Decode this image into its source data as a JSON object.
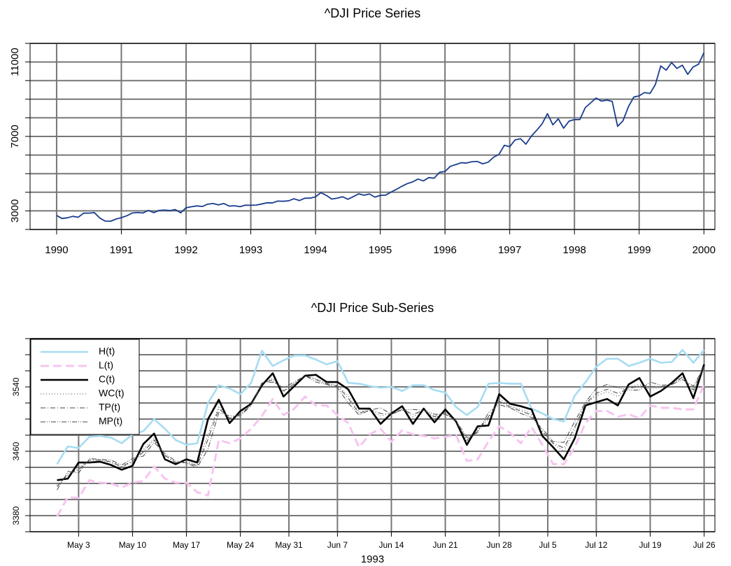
{
  "chart_data": [
    {
      "type": "line",
      "title": "^DJI Price Series",
      "x": [
        1990,
        1990.083,
        1990.167,
        1990.25,
        1990.333,
        1990.417,
        1990.5,
        1990.583,
        1990.667,
        1990.75,
        1990.833,
        1990.917,
        1991,
        1991.083,
        1991.167,
        1991.25,
        1991.333,
        1991.417,
        1991.5,
        1991.583,
        1991.667,
        1991.75,
        1991.833,
        1991.917,
        1992,
        1992.083,
        1992.167,
        1992.25,
        1992.333,
        1992.417,
        1992.5,
        1992.583,
        1992.667,
        1992.75,
        1992.833,
        1992.917,
        1993,
        1993.083,
        1993.167,
        1993.25,
        1993.333,
        1993.417,
        1993.5,
        1993.583,
        1993.667,
        1993.75,
        1993.833,
        1993.917,
        1994,
        1994.083,
        1994.167,
        1994.25,
        1994.333,
        1994.417,
        1994.5,
        1994.583,
        1994.667,
        1994.75,
        1994.833,
        1994.917,
        1995,
        1995.083,
        1995.167,
        1995.25,
        1995.333,
        1995.417,
        1995.5,
        1995.583,
        1995.667,
        1995.75,
        1995.833,
        1995.917,
        1996,
        1996.083,
        1996.167,
        1996.25,
        1996.333,
        1996.417,
        1996.5,
        1996.583,
        1996.667,
        1996.75,
        1996.833,
        1996.917,
        1997,
        1997.083,
        1997.167,
        1997.25,
        1997.333,
        1997.417,
        1997.5,
        1997.583,
        1997.667,
        1997.75,
        1997.833,
        1997.917,
        1998,
        1998.083,
        1998.167,
        1998.25,
        1998.333,
        1998.417,
        1998.5,
        1998.583,
        1998.667,
        1998.75,
        1998.833,
        1998.917,
        1999,
        1999.083,
        1999.167,
        1999.25,
        1999.333,
        1999.417,
        1999.5,
        1999.583,
        1999.667,
        1999.75,
        1999.833,
        1999.917,
        2000
      ],
      "series": [
        {
          "color": "#1a3d8f",
          "linestyle": "solid",
          "values": [
            2753,
            2590,
            2627,
            2707,
            2656,
            2876,
            2880,
            2905,
            2614,
            2452,
            2442,
            2559,
            2633,
            2736,
            2882,
            2913,
            2887,
            3027,
            2906,
            3024,
            3043,
            3017,
            3069,
            2895,
            3168,
            3223,
            3267,
            3235,
            3359,
            3396,
            3319,
            3394,
            3257,
            3272,
            3226,
            3305,
            3301,
            3310,
            3370,
            3435,
            3427,
            3527,
            3516,
            3540,
            3651,
            3555,
            3681,
            3684,
            3754,
            3978,
            3832,
            3636,
            3682,
            3758,
            3625,
            3765,
            3913,
            3843,
            3908,
            3739,
            3834,
            3844,
            4011,
            4158,
            4321,
            4465,
            4556,
            4709,
            4611,
            4789,
            4756,
            5075,
            5117,
            5395,
            5486,
            5588,
            5569,
            5643,
            5655,
            5529,
            5616,
            5882,
            6029,
            6522,
            6448,
            6813,
            6878,
            6584,
            7009,
            7331,
            7673,
            8223,
            7622,
            7945,
            7442,
            7823,
            7908,
            7907,
            8546,
            8800,
            9063,
            8900,
            8952,
            8883,
            7539,
            7843,
            8592,
            9117,
            9181,
            9359,
            9307,
            9786,
            10789,
            10560,
            10971,
            10655,
            10829,
            10337,
            10729,
            10878,
            11497
          ]
        }
      ],
      "xlim": [
        1989.59,
        2000.17
      ],
      "xticks": [
        1990,
        1991,
        1992,
        1993,
        1994,
        1995,
        1996,
        1997,
        1998,
        1999,
        2000
      ],
      "ylim": [
        2000,
        12000
      ],
      "yticks": [
        3000,
        7000,
        11000
      ],
      "ygrid": [
        2000,
        3000,
        4000,
        5000,
        6000,
        7000,
        8000,
        9000,
        10000,
        11000,
        12000
      ],
      "grid": true
    },
    {
      "type": "line",
      "title": "^DJI Price Sub-Series",
      "xlabel": "1993",
      "legend": "top-left",
      "series": [
        {
          "name": "H(t)",
          "color": "#a6dcf2",
          "linestyle": "solid",
          "values": [
            3444,
            3466,
            3464,
            3478,
            3479,
            3477,
            3470,
            3481,
            3485,
            3500,
            3488,
            3474,
            3468,
            3470,
            3520,
            3542,
            3538,
            3531,
            3545,
            3585,
            3566,
            3573,
            3579,
            3579,
            3574,
            3568,
            3572,
            3545,
            3544,
            3541,
            3539,
            3540,
            3535,
            3542,
            3542,
            3536,
            3533,
            3515,
            3505,
            3515,
            3544,
            3545,
            3544,
            3544,
            3513,
            3507,
            3500,
            3497,
            3529,
            3546,
            3565,
            3575,
            3575,
            3566,
            3570,
            3575,
            3570,
            3571,
            3586,
            3570,
            3586
          ]
        },
        {
          "name": "L(t)",
          "color": "#f7c4f0",
          "linestyle": "dashed",
          "values": [
            3379,
            3403,
            3402,
            3424,
            3421,
            3420,
            3415,
            3421,
            3423,
            3441,
            3426,
            3421,
            3421,
            3409,
            3405,
            3474,
            3470,
            3476,
            3488,
            3504,
            3525,
            3505,
            3513,
            3528,
            3517,
            3517,
            3505,
            3495,
            3465,
            3481,
            3488,
            3472,
            3486,
            3481,
            3479,
            3476,
            3478,
            3480,
            3448,
            3450,
            3472,
            3491,
            3483,
            3470,
            3490,
            3468,
            3444,
            3444,
            3465,
            3495,
            3510,
            3510,
            3503,
            3506,
            3501,
            3517,
            3514,
            3514,
            3512,
            3512,
            3543
          ]
        },
        {
          "name": "C(t)",
          "color": "#000000",
          "linestyle": "solid",
          "values": [
            3424,
            3426,
            3446,
            3446,
            3447,
            3443,
            3437,
            3442,
            3469,
            3482,
            3450,
            3444,
            3450,
            3446,
            3500,
            3524,
            3495,
            3510,
            3519,
            3542,
            3557,
            3528,
            3541,
            3554,
            3555,
            3546,
            3546,
            3537,
            3513,
            3513,
            3494,
            3507,
            3516,
            3494,
            3513,
            3496,
            3512,
            3497,
            3468,
            3491,
            3492,
            3531,
            3519,
            3516,
            3512,
            3479,
            3465,
            3450,
            3476,
            3517,
            3521,
            3525,
            3517,
            3543,
            3551,
            3528,
            3535,
            3545,
            3557,
            3526,
            3568
          ]
        },
        {
          "name": "WC(t)",
          "color": "#444444",
          "linestyle": "dotted",
          "values": [
            3418,
            3430,
            3440,
            3449,
            3449,
            3446,
            3440,
            3447,
            3462,
            3476,
            3454,
            3446,
            3447,
            3443,
            3481,
            3516,
            3500,
            3507,
            3518,
            3543,
            3551,
            3534,
            3544,
            3554,
            3550,
            3544,
            3542,
            3529,
            3509,
            3512,
            3504,
            3507,
            3513,
            3503,
            3512,
            3501,
            3509,
            3497,
            3472,
            3487,
            3500,
            3525,
            3516,
            3512,
            3507,
            3483,
            3469,
            3460,
            3487,
            3519,
            3529,
            3534,
            3528,
            3540,
            3543,
            3537,
            3539,
            3544,
            3553,
            3534,
            3566
          ]
        },
        {
          "name": "TP(t)",
          "color": "#444444",
          "linestyle": "dotdash",
          "values": [
            3416,
            3432,
            3437,
            3449,
            3449,
            3447,
            3441,
            3448,
            3459,
            3474,
            3455,
            3446,
            3446,
            3442,
            3475,
            3513,
            3501,
            3506,
            3517,
            3544,
            3549,
            3535,
            3544,
            3554,
            3549,
            3544,
            3541,
            3526,
            3507,
            3512,
            3507,
            3506,
            3512,
            3506,
            3511,
            3503,
            3508,
            3497,
            3474,
            3485,
            3503,
            3522,
            3515,
            3510,
            3505,
            3485,
            3470,
            3464,
            3490,
            3519,
            3532,
            3537,
            3532,
            3538,
            3541,
            3540,
            3540,
            3543,
            3552,
            3536,
            3566
          ]
        },
        {
          "name": "MP(t)",
          "color": "#444444",
          "linestyle": "twodash",
          "values": [
            3412,
            3435,
            3433,
            3451,
            3450,
            3449,
            3443,
            3451,
            3454,
            3471,
            3457,
            3448,
            3445,
            3440,
            3463,
            3508,
            3504,
            3504,
            3517,
            3545,
            3546,
            3539,
            3546,
            3554,
            3546,
            3543,
            3539,
            3520,
            3505,
            3511,
            3514,
            3506,
            3511,
            3512,
            3511,
            3506,
            3506,
            3498,
            3477,
            3483,
            3508,
            3518,
            3514,
            3507,
            3502,
            3488,
            3472,
            3471,
            3497,
            3521,
            3538,
            3543,
            3539,
            3536,
            3536,
            3546,
            3542,
            3543,
            3549,
            3541,
            3565
          ]
        }
      ],
      "xlim": [
        -2.5,
        61
      ],
      "xticks": [
        {
          "value": 2,
          "label": "May 3"
        },
        {
          "value": 7,
          "label": "May 10"
        },
        {
          "value": 12,
          "label": "May 17"
        },
        {
          "value": 17,
          "label": "May 24"
        },
        {
          "value": 21.5,
          "label": "May 31"
        },
        {
          "value": 26,
          "label": "Jun 7"
        },
        {
          "value": 31,
          "label": "Jun 14"
        },
        {
          "value": 36,
          "label": "Jun 21"
        },
        {
          "value": 41,
          "label": "Jun 28"
        },
        {
          "value": 45.5,
          "label": "Jul 5"
        },
        {
          "value": 50,
          "label": "Jul 12"
        },
        {
          "value": 55,
          "label": "Jul 19"
        },
        {
          "value": 60,
          "label": "Jul 26"
        }
      ],
      "ylim": [
        3360,
        3600
      ],
      "yticks": [
        3380,
        3460,
        3540
      ],
      "ygrid": [
        3360,
        3380,
        3400,
        3420,
        3440,
        3460,
        3480,
        3500,
        3520,
        3540,
        3560,
        3580,
        3600
      ],
      "grid": true
    }
  ]
}
